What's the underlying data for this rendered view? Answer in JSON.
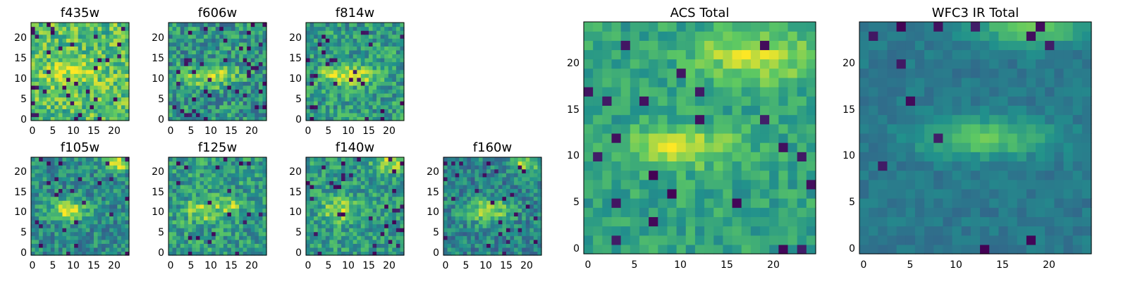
{
  "figure": {
    "background": "#ffffff",
    "colormap": "viridis"
  },
  "chart_data": [
    {
      "type": "heatmap",
      "title": "f435w",
      "xticks": [
        "0",
        "5",
        "10",
        "15",
        "20"
      ],
      "yticks": [
        "0",
        "5",
        "10",
        "15",
        "20"
      ],
      "xlim": [
        0,
        24
      ],
      "ylim": [
        0,
        24
      ],
      "grid": false,
      "colorbar": false
    },
    {
      "type": "heatmap",
      "title": "f606w",
      "xticks": [
        "0",
        "5",
        "10",
        "15",
        "20"
      ],
      "yticks": [
        "0",
        "5",
        "10",
        "15",
        "20"
      ],
      "xlim": [
        0,
        24
      ],
      "ylim": [
        0,
        24
      ],
      "grid": false,
      "colorbar": false
    },
    {
      "type": "heatmap",
      "title": "f814w",
      "xticks": [
        "0",
        "5",
        "10",
        "15",
        "20"
      ],
      "yticks": [
        "0",
        "5",
        "10",
        "15",
        "20"
      ],
      "xlim": [
        0,
        24
      ],
      "ylim": [
        0,
        24
      ],
      "grid": false,
      "colorbar": false
    },
    {
      "type": "heatmap",
      "title": "f105w",
      "xticks": [
        "0",
        "5",
        "10",
        "15",
        "20"
      ],
      "yticks": [
        "0",
        "5",
        "10",
        "15",
        "20"
      ],
      "xlim": [
        0,
        24
      ],
      "ylim": [
        0,
        24
      ],
      "grid": false,
      "colorbar": false
    },
    {
      "type": "heatmap",
      "title": "f125w",
      "xticks": [
        "0",
        "5",
        "10",
        "15",
        "20"
      ],
      "yticks": [
        "0",
        "5",
        "10",
        "15",
        "20"
      ],
      "xlim": [
        0,
        24
      ],
      "ylim": [
        0,
        24
      ],
      "grid": false,
      "colorbar": false
    },
    {
      "type": "heatmap",
      "title": "f140w",
      "xticks": [
        "0",
        "5",
        "10",
        "15",
        "20"
      ],
      "yticks": [
        "0",
        "5",
        "10",
        "15",
        "20"
      ],
      "xlim": [
        0,
        24
      ],
      "ylim": [
        0,
        24
      ],
      "grid": false,
      "colorbar": false
    },
    {
      "type": "heatmap",
      "title": "f160w",
      "xticks": [
        "0",
        "5",
        "10",
        "15",
        "20"
      ],
      "yticks": [
        "0",
        "5",
        "10",
        "15",
        "20"
      ],
      "xlim": [
        0,
        24
      ],
      "ylim": [
        0,
        24
      ],
      "grid": false,
      "colorbar": false
    },
    {
      "type": "heatmap",
      "title": "ACS Total",
      "xticks": [
        "0",
        "5",
        "10",
        "15",
        "20"
      ],
      "yticks": [
        "0",
        "5",
        "10",
        "15",
        "20"
      ],
      "xlim": [
        0,
        24
      ],
      "ylim": [
        0,
        24
      ],
      "grid": false,
      "colorbar": false
    },
    {
      "type": "heatmap",
      "title": "WFC3 IR Total",
      "xticks": [
        "0",
        "5",
        "10",
        "15",
        "20"
      ],
      "yticks": [
        "0",
        "5",
        "10",
        "15",
        "20"
      ],
      "xlim": [
        0,
        24
      ],
      "ylim": [
        0,
        24
      ],
      "grid": false,
      "colorbar": false
    }
  ]
}
